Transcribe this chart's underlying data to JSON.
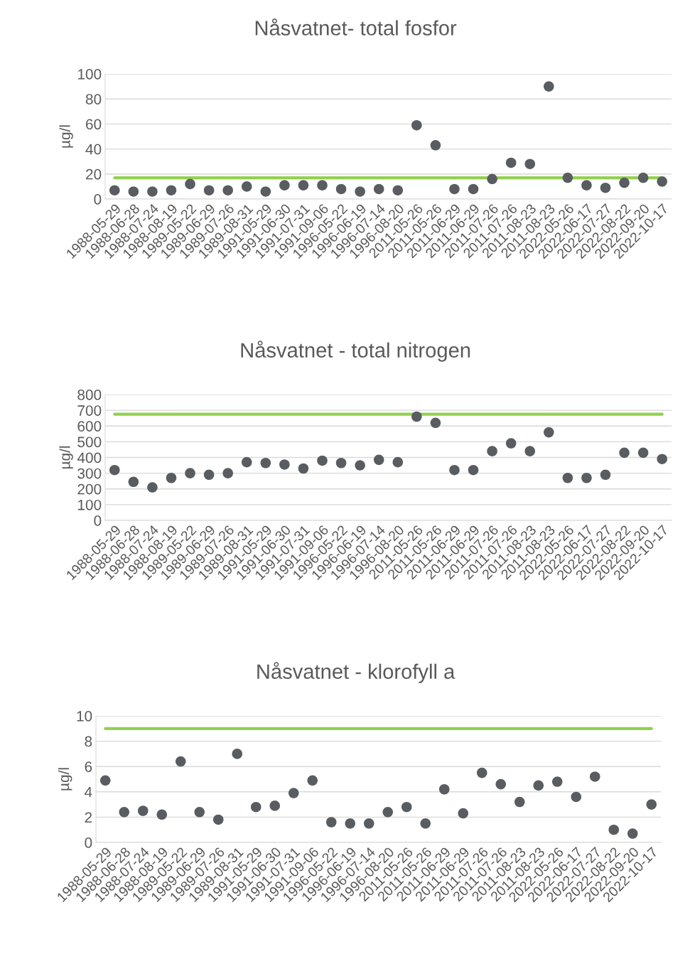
{
  "chart_data": [
    {
      "type": "scatter",
      "title": "Nåsvatnet- total fosfor",
      "ylabel": "µg/l",
      "categories": [
        "1988-05-29",
        "1988-06-28",
        "1988-07-24",
        "1988-08-19",
        "1989-05-22",
        "1989-06-29",
        "1989-07-26",
        "1989-08-31",
        "1991-05-29",
        "1991-06-30",
        "1991-07-31",
        "1991-09-06",
        "1996-05-22",
        "1996-06-19",
        "1996-07-14",
        "1996-08-20",
        "2011-05-26",
        "2011-05-26",
        "2011-06-29",
        "2011-06-29",
        "2011-07-26",
        "2011-07-26",
        "2011-08-23",
        "2011-08-23",
        "2022-05-26",
        "2022-06-17",
        "2022-07-27",
        "2022-08-22",
        "2022-09-20",
        "2022-10-17"
      ],
      "series": [
        {
          "color": "#595d61",
          "values": [
            7,
            6,
            6,
            7,
            12,
            7,
            7,
            10,
            6,
            11,
            11,
            11,
            8,
            6,
            8,
            7,
            59,
            43,
            8,
            8,
            16,
            29,
            28,
            90,
            17,
            11,
            9,
            13,
            17,
            14
          ]
        }
      ],
      "ylim": [
        0,
        100
      ],
      "yticks": [
        0,
        20,
        40,
        60,
        80,
        100
      ],
      "grid": "y",
      "marker": "circle",
      "ref_lines": [
        {
          "axis": "y",
          "value": 17,
          "label": null,
          "color": "#92d050"
        }
      ]
    },
    {
      "type": "scatter",
      "title": "Nåsvatnet - total nitrogen",
      "ylabel": "µg/l",
      "categories": [
        "1988-05-29",
        "1988-06-28",
        "1988-07-24",
        "1988-08-19",
        "1989-05-22",
        "1989-06-29",
        "1989-07-26",
        "1989-08-31",
        "1991-05-29",
        "1991-06-30",
        "1991-07-31",
        "1991-09-06",
        "1996-05-22",
        "1996-06-19",
        "1996-07-14",
        "1996-08-20",
        "2011-05-26",
        "2011-05-26",
        "2011-06-29",
        "2011-06-29",
        "2011-07-26",
        "2011-07-26",
        "2011-08-23",
        "2011-08-23",
        "2022-05-26",
        "2022-06-17",
        "2022-07-27",
        "2022-08-22",
        "2022-09-20",
        "2022-10-17"
      ],
      "series": [
        {
          "color": "#595d61",
          "values": [
            320,
            245,
            210,
            270,
            300,
            290,
            300,
            370,
            365,
            355,
            330,
            380,
            365,
            350,
            385,
            370,
            660,
            620,
            320,
            320,
            440,
            490,
            440,
            560,
            270,
            270,
            290,
            430,
            430,
            390
          ]
        }
      ],
      "ylim": [
        0,
        800
      ],
      "yticks": [
        0,
        100,
        200,
        300,
        400,
        500,
        600,
        700,
        800
      ],
      "grid": "y",
      "marker": "circle",
      "ref_lines": [
        {
          "axis": "y",
          "value": 675,
          "label": null,
          "color": "#92d050"
        }
      ]
    },
    {
      "type": "scatter",
      "title": "Nåsvatnet - klorofyll a",
      "ylabel": "µg/l",
      "categories": [
        "1988-05-29",
        "1988-06-28",
        "1988-07-24",
        "1988-08-19",
        "1989-05-22",
        "1989-06-29",
        "1989-07-26",
        "1989-08-31",
        "1991-05-29",
        "1991-06-30",
        "1991-07-31",
        "1991-09-06",
        "1996-05-22",
        "1996-06-19",
        "1996-07-14",
        "1996-08-20",
        "2011-05-26",
        "2011-05-26",
        "2011-06-29",
        "2011-06-29",
        "2011-07-26",
        "2011-07-26",
        "2011-08-23",
        "2011-08-23",
        "2022-05-26",
        "2022-06-17",
        "2022-07-27",
        "2022-08-22",
        "2022-09-20",
        "2022-10-17"
      ],
      "series": [
        {
          "color": "#595d61",
          "values": [
            4.9,
            2.4,
            2.5,
            2.2,
            6.4,
            2.4,
            1.8,
            7.0,
            2.8,
            2.9,
            3.9,
            4.9,
            1.6,
            1.5,
            1.5,
            2.4,
            2.8,
            1.5,
            4.2,
            2.3,
            5.5,
            4.6,
            3.2,
            4.5,
            4.8,
            3.6,
            5.2,
            1.0,
            0.7,
            3.0
          ]
        }
      ],
      "ylim": [
        0,
        10
      ],
      "yticks": [
        0,
        2,
        4,
        6,
        8,
        10
      ],
      "grid": "y",
      "marker": "circle",
      "ref_lines": [
        {
          "axis": "y",
          "value": 9,
          "label": null,
          "color": "#92d050"
        }
      ]
    }
  ]
}
